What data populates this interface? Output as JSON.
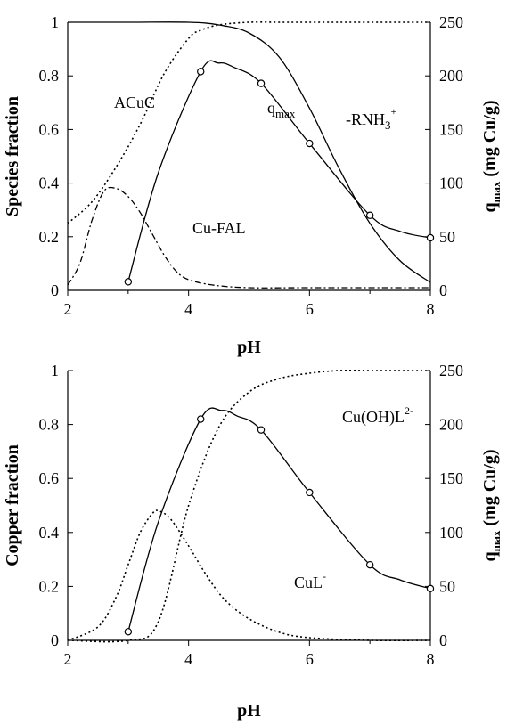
{
  "chart_data": [
    {
      "type": "line",
      "xlabel": "pH",
      "ylabel": "Species fraction",
      "y2label": "q",
      "y2label_sub": "max",
      "y2label_tail": " (mg Cu/g)",
      "xlim": [
        2,
        8
      ],
      "ylim": [
        0,
        1
      ],
      "y2lim": [
        0,
        250
      ],
      "x_ticks": [
        "2",
        "4",
        "6",
        "8"
      ],
      "y_ticks": [
        "0",
        "0.2",
        "0.4",
        "0.6",
        "0.8",
        "1"
      ],
      "y2_ticks": [
        "0",
        "50",
        "100",
        "150",
        "200",
        "250"
      ],
      "grid": false,
      "series": [
        {
          "name": "ACuC",
          "style": "dotted",
          "axis": "left",
          "x": [
            2.0,
            2.4,
            2.8,
            3.2,
            3.6,
            4.0,
            4.2,
            4.5,
            5.0,
            5.5,
            6.0,
            7.0,
            8.0
          ],
          "y": [
            0.25,
            0.33,
            0.46,
            0.62,
            0.81,
            0.94,
            0.97,
            0.99,
            1.0,
            1.0,
            1.0,
            1.0,
            1.0
          ]
        },
        {
          "name": "Cu-FAL",
          "style": "dashdot",
          "axis": "left",
          "x": [
            2.0,
            2.2,
            2.4,
            2.6,
            2.8,
            3.0,
            3.2,
            3.4,
            3.6,
            3.8,
            4.0,
            4.4,
            5.0,
            6.0,
            8.0
          ],
          "y": [
            0.02,
            0.1,
            0.26,
            0.37,
            0.38,
            0.35,
            0.29,
            0.21,
            0.13,
            0.07,
            0.04,
            0.02,
            0.01,
            0.01,
            0.01
          ],
          "label_text": "Cu-FAL"
        },
        {
          "name": "-RNH3+",
          "label_main": "-RNH",
          "label_sub": "3",
          "label_sup": "+",
          "style": "solid",
          "axis": "left",
          "x": [
            2.0,
            3.0,
            4.0,
            4.5,
            5.0,
            5.5,
            6.0,
            6.5,
            7.0,
            7.5,
            8.0
          ],
          "y": [
            1.0,
            1.0,
            1.0,
            0.99,
            0.96,
            0.87,
            0.68,
            0.45,
            0.25,
            0.11,
            0.03
          ]
        },
        {
          "name": "qmax",
          "label_main": "q",
          "label_sub": "max",
          "style": "solid",
          "axis": "right",
          "markers": true,
          "x": [
            3.0,
            3.5,
            4.2,
            4.5,
            4.75,
            5.2,
            6.0,
            7.0,
            7.5,
            8.0
          ],
          "y": [
            8,
            110,
            204,
            212,
            208,
            193,
            137,
            70,
            55,
            49
          ],
          "marker_x": [
            3.0,
            4.2,
            5.2,
            6.0,
            7.0,
            8.0
          ],
          "marker_y": [
            8,
            204,
            193,
            137,
            70,
            49
          ]
        }
      ],
      "annotations": [
        "ACuC",
        "Cu-FAL"
      ]
    },
    {
      "type": "line",
      "xlabel": "pH",
      "ylabel": "Copper fraction",
      "y2label": "q",
      "y2label_sub": "max",
      "y2label_tail": " (mg Cu/g)",
      "xlim": [
        2,
        8
      ],
      "ylim": [
        0,
        1
      ],
      "y2lim": [
        0,
        250
      ],
      "x_ticks": [
        "2",
        "4",
        "6",
        "8"
      ],
      "y_ticks": [
        "0",
        "0.2",
        "0.4",
        "0.6",
        "0.8",
        "1"
      ],
      "y2_ticks": [
        "0",
        "50",
        "100",
        "150",
        "200",
        "250"
      ],
      "grid": false,
      "series": [
        {
          "name": "CuL-",
          "label_main": "CuL",
          "label_sup": "-",
          "style": "dotted",
          "axis": "left",
          "x": [
            2.0,
            2.5,
            2.8,
            3.0,
            3.2,
            3.4,
            3.5,
            3.7,
            4.0,
            4.3,
            4.6,
            5.0,
            5.5,
            6.0,
            7.0,
            8.0
          ],
          "y": [
            0.0,
            0.05,
            0.16,
            0.28,
            0.4,
            0.47,
            0.48,
            0.45,
            0.35,
            0.24,
            0.15,
            0.08,
            0.03,
            0.01,
            0.0,
            0.0
          ]
        },
        {
          "name": "Cu(OH)L2-",
          "label_main": "Cu(OH)L",
          "label_sup": "2-",
          "style": "dotted",
          "axis": "left",
          "x": [
            2.0,
            3.0,
            3.5,
            4.0,
            4.5,
            5.0,
            5.5,
            6.0,
            6.5,
            7.0,
            8.0
          ],
          "y": [
            0.0,
            0.0,
            0.07,
            0.5,
            0.79,
            0.92,
            0.97,
            0.99,
            1.0,
            1.0,
            1.0
          ]
        },
        {
          "name": "qmax",
          "label_main": "q",
          "label_sub": "max",
          "style": "solid",
          "axis": "right",
          "markers": true,
          "x": [
            3.0,
            3.5,
            4.2,
            4.55,
            4.8,
            5.2,
            6.0,
            7.0,
            7.5,
            8.0
          ],
          "y": [
            8,
            110,
            205,
            213,
            208,
            195,
            137,
            70,
            56,
            48
          ],
          "marker_x": [
            3.0,
            4.2,
            5.2,
            6.0,
            7.0,
            8.0
          ],
          "marker_y": [
            8,
            205,
            195,
            137,
            70,
            48
          ]
        }
      ]
    }
  ]
}
